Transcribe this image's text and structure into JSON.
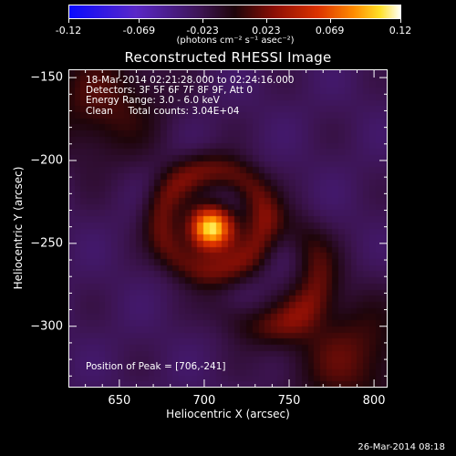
{
  "colorbar": {
    "ticks": [
      "-0.12",
      "-0.069",
      "-0.023",
      "0.023",
      "0.069",
      "0.12"
    ],
    "units": "(photons cm⁻² s⁻¹ asec⁻²)"
  },
  "chart_data": {
    "type": "heatmap",
    "title": "Reconstructed RHESSI Image",
    "xlabel": "Heliocentric X (arcsec)",
    "ylabel": "Heliocentric Y (arcsec)",
    "xlim": [
      620,
      808
    ],
    "ylim": [
      -337,
      -145
    ],
    "xticks": [
      650,
      700,
      750,
      800
    ],
    "yticks": [
      -150,
      -200,
      -250,
      -300
    ],
    "clim": [
      -0.12,
      0.12
    ],
    "colormap": "black-blue-purple-red-orange-yellow-white",
    "peak": {
      "x": 706,
      "y": -241
    },
    "features": [
      {
        "kind": "main-source",
        "x": 704,
        "y": -241,
        "sigma": 9,
        "amplitude": 1.0
      },
      {
        "kind": "ring",
        "x": 705,
        "y": -236,
        "radius": 30,
        "width": 8,
        "amplitude": 0.33
      },
      {
        "kind": "arc-lower-right",
        "x": 735,
        "y": -268,
        "amplitude": 0.3
      },
      {
        "kind": "lobe-lower-right",
        "x": 785,
        "y": -318,
        "amplitude": 0.3
      },
      {
        "kind": "lobe-upper-left",
        "x": 640,
        "y": -165,
        "amplitude": 0.28
      }
    ]
  },
  "info": {
    "time_range": "18-Mar-2014 02:21:28.000 to 02:24:16.000",
    "detectors": "Detectors: 3F 5F 6F 7F 8F 9F, Att 0",
    "energy": "Energy Range: 3.0 - 6.0 keV",
    "clean": "Clean     Total counts: 3.04E+04",
    "peak": "Position of Peak = [706,-241]"
  },
  "datestamp": "26-Mar-2014 08:18",
  "colors": {
    "background": "#000000",
    "text": "#ffffff"
  }
}
